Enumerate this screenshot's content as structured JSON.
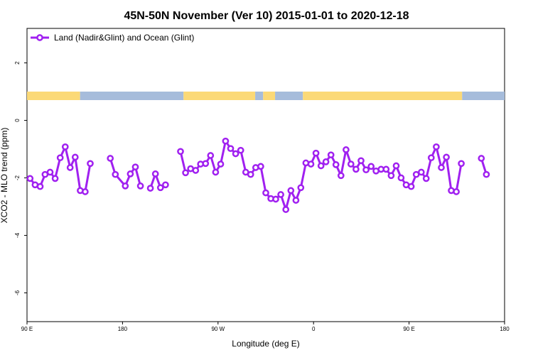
{
  "chart_data": {
    "type": "line",
    "title": "45N-50N November (Ver 10)   2015-01-01 to 2020-12-18",
    "xlabel": "Longitude (deg E)",
    "ylabel": "XCO2 - MLO trend (ppm)",
    "xlim": [
      90,
      450
    ],
    "ylim": [
      -7,
      3.2
    ],
    "x_ticks": [
      {
        "value": 90,
        "label": "90 E"
      },
      {
        "value": 162,
        "label": "180"
      },
      {
        "value": 234,
        "label": "90 W"
      },
      {
        "value": 306,
        "label": "0"
      },
      {
        "value": 378,
        "label": "90 E"
      },
      {
        "value": 450,
        "label": "180"
      }
    ],
    "y_ticks": [
      {
        "value": 2,
        "label": "2"
      },
      {
        "value": 0,
        "label": "0"
      },
      {
        "value": -2,
        "label": "-2"
      },
      {
        "value": -4,
        "label": "-4"
      },
      {
        "value": -6,
        "label": "-6"
      }
    ],
    "line_color": "#a020f0",
    "land_color": "#fbd977",
    "ocean_color": "#a6bcdb",
    "series": [
      {
        "name": "Land (Nadir&Glint) and Ocean (Glint)",
        "segments": [
          [
            [
              92.3,
              -2.02
            ],
            [
              96.1,
              -2.24
            ],
            [
              99.9,
              -2.3
            ],
            [
              103.6,
              -1.88
            ],
            [
              107.4,
              -1.8
            ],
            [
              111.2,
              -2.02
            ],
            [
              115.0,
              -1.3
            ],
            [
              118.8,
              -0.92
            ],
            [
              122.5,
              -1.64
            ],
            [
              126.3,
              -1.28
            ],
            [
              130.1,
              -2.44
            ],
            [
              133.9,
              -2.48
            ],
            [
              137.7,
              -1.5
            ]
          ],
          [
            [
              152.8,
              -1.32
            ],
            [
              156.6,
              -1.88
            ],
            [
              164.1,
              -2.28
            ],
            [
              167.9,
              -1.86
            ],
            [
              171.7,
              -1.62
            ],
            [
              175.5,
              -2.28
            ]
          ],
          [
            [
              183.0,
              -2.36
            ],
            [
              186.8,
              -1.86
            ],
            [
              190.6,
              -2.34
            ],
            [
              194.4,
              -2.24
            ]
          ],
          [
            [
              205.7,
              -1.08
            ],
            [
              209.5,
              -1.82
            ],
            [
              213.3,
              -1.68
            ],
            [
              217.1,
              -1.74
            ],
            [
              220.8,
              -1.52
            ],
            [
              224.6,
              -1.5
            ],
            [
              228.4,
              -1.22
            ],
            [
              232.2,
              -1.8
            ],
            [
              236.0,
              -1.52
            ],
            [
              239.7,
              -0.72
            ],
            [
              243.5,
              -0.98
            ],
            [
              247.3,
              -1.16
            ],
            [
              251.1,
              -1.04
            ],
            [
              254.9,
              -1.8
            ],
            [
              258.6,
              -1.88
            ],
            [
              262.4,
              -1.64
            ],
            [
              266.2,
              -1.6
            ],
            [
              270.0,
              -2.52
            ],
            [
              273.8,
              -2.72
            ],
            [
              277.5,
              -2.74
            ],
            [
              281.3,
              -2.58
            ],
            [
              285.1,
              -3.1
            ],
            [
              288.9,
              -2.44
            ],
            [
              292.7,
              -2.78
            ],
            [
              296.4,
              -2.34
            ],
            [
              300.2,
              -1.48
            ],
            [
              304.0,
              -1.52
            ],
            [
              307.8,
              -1.14
            ],
            [
              311.6,
              -1.58
            ],
            [
              315.3,
              -1.44
            ],
            [
              319.1,
              -1.2
            ],
            [
              322.9,
              -1.54
            ],
            [
              326.7,
              -1.92
            ],
            [
              330.5,
              -1.02
            ],
            [
              334.2,
              -1.52
            ],
            [
              338.0,
              -1.7
            ],
            [
              341.8,
              -1.4
            ],
            [
              345.6,
              -1.72
            ],
            [
              349.4,
              -1.6
            ],
            [
              353.1,
              -1.76
            ],
            [
              356.9,
              -1.7
            ],
            [
              360.7,
              -1.7
            ],
            [
              364.5,
              -1.92
            ],
            [
              368.3,
              -1.58
            ],
            [
              372.0,
              -2.0
            ],
            [
              375.8,
              -2.24
            ],
            [
              379.6,
              -2.3
            ],
            [
              383.4,
              -1.88
            ],
            [
              387.2,
              -1.8
            ],
            [
              390.9,
              -2.02
            ],
            [
              394.7,
              -1.3
            ],
            [
              398.5,
              -0.92
            ],
            [
              402.3,
              -1.64
            ],
            [
              406.1,
              -1.28
            ],
            [
              409.8,
              -2.44
            ],
            [
              413.6,
              -2.48
            ],
            [
              417.4,
              -1.5
            ]
          ],
          [
            [
              432.5,
              -1.32
            ],
            [
              436.3,
              -1.88
            ]
          ]
        ]
      }
    ],
    "surface_bands": [
      {
        "type": "land",
        "from": 90,
        "to": 130
      },
      {
        "type": "ocean",
        "from": 130,
        "to": 208
      },
      {
        "type": "land",
        "from": 208,
        "to": 262
      },
      {
        "type": "ocean",
        "from": 262,
        "to": 268
      },
      {
        "type": "land",
        "from": 268,
        "to": 277
      },
      {
        "type": "ocean",
        "from": 277,
        "to": 298
      },
      {
        "type": "land",
        "from": 298,
        "to": 418
      },
      {
        "type": "ocean",
        "from": 418,
        "to": 450
      }
    ]
  }
}
